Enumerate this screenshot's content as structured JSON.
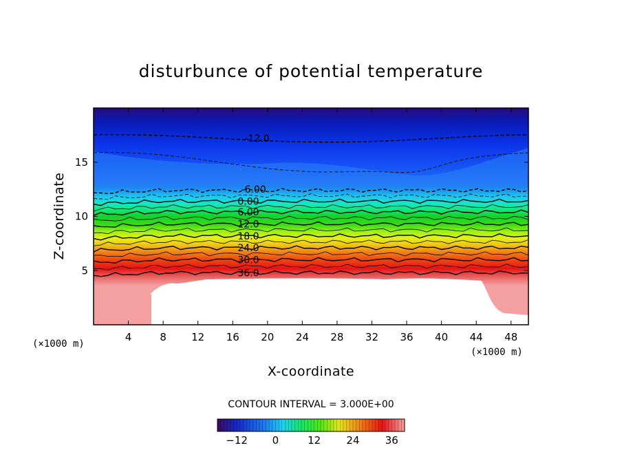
{
  "chart_data": {
    "type": "heatmap",
    "title": "disturbunce of potential temperature",
    "xlabel": "X-coordinate",
    "ylabel": "Z-coordinate",
    "x_unit": "(×1000 m)",
    "y_unit": "(×1000 m)",
    "xlim": [
      0,
      50
    ],
    "ylim": [
      0,
      20
    ],
    "x_ticks": [
      4,
      8,
      12,
      16,
      20,
      24,
      28,
      32,
      36,
      40,
      44,
      48
    ],
    "y_ticks": [
      5,
      10,
      15
    ],
    "contour_interval_text": "CONTOUR INTERVAL = 3.000E+00",
    "contour_labels": [
      {
        "text": "-12.0",
        "x": 18.8,
        "z": 17.2
      },
      {
        "text": "-6.00",
        "x": 18.4,
        "z": 12.5
      },
      {
        "text": "0.00",
        "x": 17.8,
        "z": 11.4
      },
      {
        "text": "6.00",
        "x": 17.8,
        "z": 10.4
      },
      {
        "text": "12.0",
        "x": 17.8,
        "z": 9.3
      },
      {
        "text": "18.0",
        "x": 17.8,
        "z": 8.2
      },
      {
        "text": "24.0",
        "x": 17.8,
        "z": 7.1
      },
      {
        "text": "30.0",
        "x": 17.8,
        "z": 6.0
      },
      {
        "text": "36.0",
        "x": 17.8,
        "z": 4.8
      }
    ],
    "contour_levels": [
      {
        "level": -12,
        "z": 17.2,
        "dashed": true
      },
      {
        "level": -9,
        "z": 15.0,
        "dashed": true
      },
      {
        "level": -6,
        "z": 12.4,
        "dashed": true
      },
      {
        "level": -3,
        "z": 11.9,
        "dashed": true
      },
      {
        "level": 0,
        "z": 11.4,
        "dashed": false
      },
      {
        "level": 3,
        "z": 10.9,
        "dashed": false
      },
      {
        "level": 6,
        "z": 10.4,
        "dashed": false
      },
      {
        "level": 9,
        "z": 9.85,
        "dashed": false
      },
      {
        "level": 12,
        "z": 9.3,
        "dashed": false
      },
      {
        "level": 15,
        "z": 8.75,
        "dashed": false
      },
      {
        "level": 18,
        "z": 8.2,
        "dashed": false
      },
      {
        "level": 21,
        "z": 7.65,
        "dashed": false
      },
      {
        "level": 24,
        "z": 7.1,
        "dashed": false
      },
      {
        "level": 27,
        "z": 6.55,
        "dashed": false
      },
      {
        "level": 30,
        "z": 6.0,
        "dashed": false
      },
      {
        "level": 33,
        "z": 5.4,
        "dashed": false
      },
      {
        "level": 36,
        "z": 4.8,
        "dashed": false
      }
    ],
    "colorbar": {
      "range": [
        -18,
        40
      ],
      "ticks": [
        -12,
        0,
        12,
        24,
        36
      ]
    }
  }
}
